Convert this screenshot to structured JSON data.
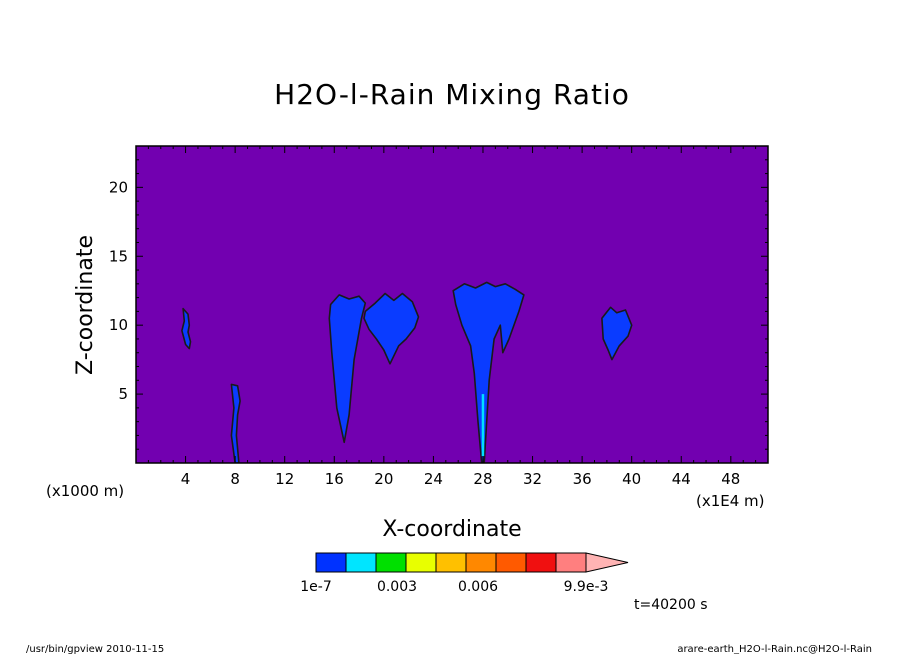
{
  "chart_data": {
    "type": "heatmap",
    "title": "H2O-l-Rain Mixing Ratio",
    "xlabel": "X-coordinate",
    "ylabel": "Z-coordinate",
    "x_unit_left": "(x1000 m)",
    "x_unit_right": "(x1E4 m)",
    "xlim": [
      0,
      51
    ],
    "ylim": [
      0,
      23
    ],
    "x_ticks": [
      4,
      8,
      12,
      16,
      20,
      24,
      28,
      32,
      36,
      40,
      44,
      48
    ],
    "y_ticks": [
      5,
      10,
      15,
      20
    ],
    "background_color": "#7200B0",
    "fill_color": "#0A3CFF",
    "highlight_color": "#00E0FF",
    "contour_color": "#1a1a1a",
    "colorbar": {
      "colors": [
        "#0032FF",
        "#00E5FF",
        "#00E000",
        "#E8FF00",
        "#FFC000",
        "#FF8800",
        "#FF5A00",
        "#F01010",
        "#FF7F7F",
        "#FFB4B4"
      ],
      "labels": [
        "1e-7",
        "0.003",
        "0.006",
        "9.9e-3"
      ]
    },
    "clouds": [
      {
        "name": "cell-x4",
        "x": [
          3.8,
          4.2,
          4.3,
          4.2,
          4.4,
          4.3,
          4.0,
          3.7,
          3.9,
          3.8
        ],
        "z": [
          11.2,
          10.8,
          10.0,
          9.5,
          8.8,
          8.3,
          8.6,
          9.6,
          10.3,
          11.2
        ]
      },
      {
        "name": "cell-x8",
        "x": [
          7.7,
          8.2,
          8.4,
          8.2,
          8.1,
          8.3,
          8.0,
          7.7,
          7.9,
          7.7
        ],
        "z": [
          5.7,
          5.6,
          4.5,
          3.5,
          2.0,
          0.0,
          0.0,
          2.0,
          4.0,
          5.7
        ]
      },
      {
        "name": "cell-x17",
        "x": [
          15.7,
          16.4,
          17.2,
          18.0,
          18.5,
          18.2,
          17.6,
          17.2,
          16.8,
          16.2,
          15.8,
          15.6,
          15.7
        ],
        "z": [
          11.5,
          12.2,
          11.9,
          12.1,
          11.6,
          10.5,
          7.5,
          3.5,
          1.5,
          4.0,
          8.0,
          10.5,
          11.5
        ]
      },
      {
        "name": "cell-x21",
        "x": [
          18.5,
          19.3,
          20.1,
          20.8,
          21.5,
          22.3,
          22.8,
          22.5,
          21.8,
          21.2,
          20.5,
          20.0,
          19.4,
          18.8,
          18.4,
          18.5
        ],
        "z": [
          11.0,
          11.6,
          12.3,
          11.8,
          12.3,
          11.7,
          10.6,
          9.8,
          9.0,
          8.5,
          7.2,
          8.2,
          9.0,
          9.7,
          10.5,
          11.0
        ]
      },
      {
        "name": "cell-x28",
        "x": [
          25.6,
          26.5,
          27.4,
          28.3,
          29.0,
          29.8,
          30.6,
          31.3,
          30.9,
          30.1,
          29.6,
          29.4,
          28.9,
          28.5,
          28.1,
          27.9,
          27.6,
          27.3,
          27.0,
          26.3,
          25.8,
          25.6
        ],
        "z": [
          12.5,
          13.0,
          12.7,
          13.1,
          12.8,
          13.0,
          12.6,
          12.2,
          11.0,
          9.0,
          8.0,
          10.0,
          9.0,
          6.0,
          0.0,
          0.0,
          3.0,
          6.5,
          8.5,
          10.0,
          11.5,
          12.5
        ]
      },
      {
        "name": "cell-x39",
        "x": [
          37.6,
          38.3,
          38.8,
          39.5,
          40.0,
          39.7,
          39.0,
          38.4,
          38.1,
          37.7,
          37.6
        ],
        "z": [
          10.5,
          11.3,
          10.9,
          11.1,
          10.0,
          9.2,
          8.5,
          7.5,
          8.2,
          9.0,
          10.5
        ]
      }
    ],
    "highlights": [
      {
        "name": "cell-x28-core",
        "x": [
          27.9,
          28.1,
          28.1,
          27.9
        ],
        "z": [
          5.0,
          5.0,
          0.5,
          0.5
        ]
      }
    ]
  },
  "annotations": {
    "time": "t=40200 s",
    "footer_left": "/usr/bin/gpview  2010-11-15",
    "footer_right": "arare-earth_H2O-l-Rain.nc@H2O-l-Rain"
  }
}
